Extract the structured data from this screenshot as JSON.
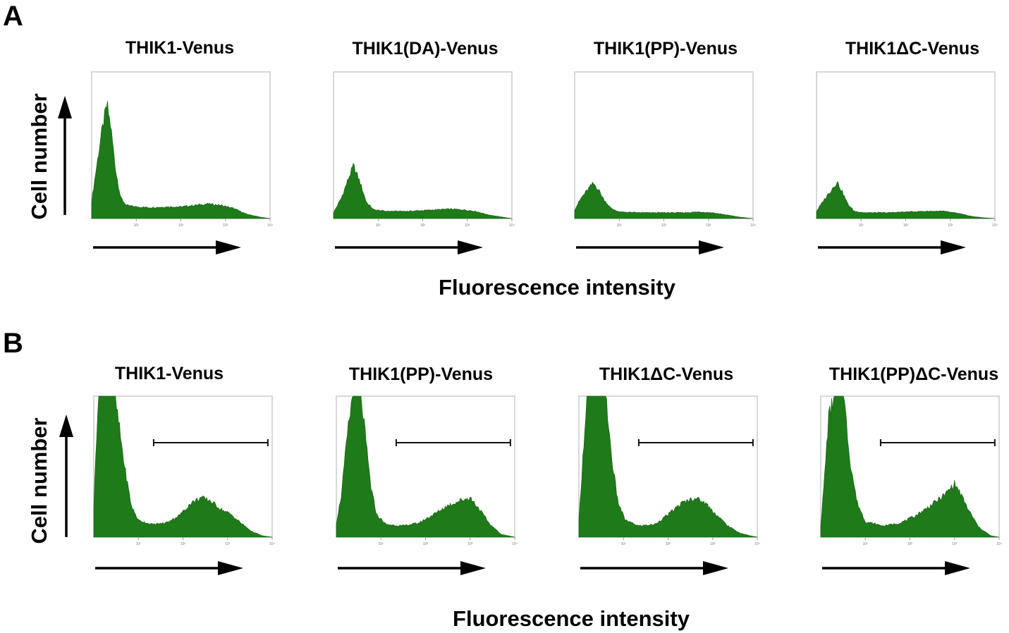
{
  "figure": {
    "panel_a_label": "A",
    "panel_b_label": "B",
    "y_axis_label": "Cell number",
    "x_axis_label": "Fluorescence intensity"
  },
  "colors": {
    "histogram_fill": "#1f7a1a",
    "frame": "#cfcfcf",
    "arrow": "#000000"
  },
  "chart_data": [
    {
      "panel": "A",
      "type": "area",
      "title": "THIK1-Venus",
      "xlabel": "Fluorescence intensity",
      "ylabel": "Cell number",
      "x_scale": "log",
      "xlim": [
        1,
        10000
      ],
      "ylim": [
        0,
        100
      ],
      "x_ticks": [
        "10¹",
        "10²",
        "10³",
        "10⁴"
      ],
      "curve": [
        [
          1,
          12
        ],
        [
          1.6,
          55
        ],
        [
          2.2,
          78
        ],
        [
          2.7,
          62
        ],
        [
          3.5,
          32
        ],
        [
          4.5,
          14
        ],
        [
          6,
          9
        ],
        [
          10,
          8
        ],
        [
          20,
          7.5
        ],
        [
          50,
          8
        ],
        [
          100,
          8
        ],
        [
          200,
          9
        ],
        [
          400,
          10
        ],
        [
          800,
          9
        ],
        [
          1500,
          7
        ],
        [
          3000,
          3
        ],
        [
          6000,
          1
        ],
        [
          10000,
          0
        ]
      ]
    },
    {
      "panel": "A",
      "type": "area",
      "title": "THIK1(DA)-Venus",
      "xlabel": "Fluorescence intensity",
      "ylabel": "Cell number",
      "x_scale": "log",
      "xlim": [
        1,
        10000
      ],
      "ylim": [
        0,
        100
      ],
      "x_ticks": [
        "10¹",
        "10²",
        "10³",
        "10⁴"
      ],
      "curve": [
        [
          1,
          4
        ],
        [
          1.5,
          14
        ],
        [
          2.2,
          28
        ],
        [
          2.8,
          36
        ],
        [
          3.8,
          26
        ],
        [
          5.5,
          11
        ],
        [
          8,
          6
        ],
        [
          15,
          5
        ],
        [
          50,
          5
        ],
        [
          100,
          5.5
        ],
        [
          200,
          6
        ],
        [
          400,
          6.5
        ],
        [
          800,
          6
        ],
        [
          1500,
          5
        ],
        [
          3000,
          2.5
        ],
        [
          6000,
          1
        ],
        [
          10000,
          0
        ]
      ]
    },
    {
      "panel": "A",
      "type": "area",
      "title": "THIK1(PP)-Venus",
      "xlabel": "Fluorescence intensity",
      "ylabel": "Cell number",
      "x_scale": "log",
      "xlim": [
        1,
        10000
      ],
      "ylim": [
        0,
        100
      ],
      "x_ticks": [
        "10¹",
        "10²",
        "10³",
        "10⁴"
      ],
      "curve": [
        [
          1,
          6
        ],
        [
          1.4,
          14
        ],
        [
          2,
          20
        ],
        [
          2.6,
          24
        ],
        [
          3.4,
          20
        ],
        [
          4.5,
          13
        ],
        [
          6.5,
          7
        ],
        [
          10,
          4.5
        ],
        [
          30,
          4
        ],
        [
          100,
          4
        ],
        [
          300,
          4
        ],
        [
          600,
          4.5
        ],
        [
          1200,
          4
        ],
        [
          2500,
          2.5
        ],
        [
          5000,
          1
        ],
        [
          10000,
          0
        ]
      ]
    },
    {
      "panel": "A",
      "type": "area",
      "title": "THIK1ΔC-Venus",
      "xlabel": "Fluorescence intensity",
      "ylabel": "Cell number",
      "x_scale": "log",
      "xlim": [
        1,
        10000
      ],
      "ylim": [
        0,
        100
      ],
      "x_ticks": [
        "10¹",
        "10²",
        "10³",
        "10⁴"
      ],
      "curve": [
        [
          1,
          5
        ],
        [
          1.5,
          13
        ],
        [
          2.2,
          20
        ],
        [
          2.9,
          25
        ],
        [
          3.8,
          18
        ],
        [
          5,
          10
        ],
        [
          7,
          5
        ],
        [
          12,
          4
        ],
        [
          40,
          4
        ],
        [
          100,
          4.5
        ],
        [
          300,
          5
        ],
        [
          700,
          5
        ],
        [
          1500,
          3.5
        ],
        [
          3000,
          1.5
        ],
        [
          6000,
          0.5
        ],
        [
          10000,
          0
        ]
      ]
    },
    {
      "panel": "B",
      "type": "area",
      "title": "THIK1-Venus",
      "xlabel": "Fluorescence intensity",
      "ylabel": "Cell number",
      "x_scale": "log",
      "xlim": [
        1,
        10000
      ],
      "ylim": [
        0,
        100
      ],
      "x_ticks": [
        "10¹",
        "10²",
        "10³",
        "10⁴"
      ],
      "gate": [
        22,
        8000
      ],
      "curve": [
        [
          1,
          22
        ],
        [
          1.25,
          100
        ],
        [
          3,
          100
        ],
        [
          5,
          48
        ],
        [
          7,
          22
        ],
        [
          10,
          12
        ],
        [
          20,
          9
        ],
        [
          40,
          10
        ],
        [
          80,
          15
        ],
        [
          150,
          24
        ],
        [
          250,
          28
        ],
        [
          400,
          26
        ],
        [
          700,
          20
        ],
        [
          1200,
          16
        ],
        [
          2000,
          10
        ],
        [
          3500,
          4
        ],
        [
          6000,
          1
        ],
        [
          10000,
          0
        ]
      ]
    },
    {
      "panel": "B",
      "type": "area",
      "title": "THIK1(PP)-Venus",
      "xlabel": "Fluorescence intensity",
      "ylabel": "Cell number",
      "x_scale": "log",
      "xlim": [
        1,
        10000
      ],
      "ylim": [
        0,
        100
      ],
      "x_ticks": [
        "10¹",
        "10²",
        "10³",
        "10⁴"
      ],
      "gate": [
        22,
        8000
      ],
      "curve": [
        [
          1,
          10
        ],
        [
          1.3,
          30
        ],
        [
          1.8,
          75
        ],
        [
          2.3,
          100
        ],
        [
          3.6,
          100
        ],
        [
          4.5,
          70
        ],
        [
          6,
          35
        ],
        [
          8,
          16
        ],
        [
          13,
          9
        ],
        [
          30,
          8
        ],
        [
          70,
          10
        ],
        [
          150,
          16
        ],
        [
          300,
          22
        ],
        [
          600,
          26
        ],
        [
          1000,
          28
        ],
        [
          1600,
          20
        ],
        [
          2800,
          9
        ],
        [
          5000,
          2
        ],
        [
          10000,
          0
        ]
      ]
    },
    {
      "panel": "B",
      "type": "area",
      "title": "THIK1ΔC-Venus",
      "xlabel": "Fluorescence intensity",
      "ylabel": "Cell number",
      "x_scale": "log",
      "xlim": [
        1,
        10000
      ],
      "ylim": [
        0,
        100
      ],
      "x_ticks": [
        "10¹",
        "10²",
        "10³",
        "10⁴"
      ],
      "gate": [
        22,
        8000
      ],
      "curve": [
        [
          1,
          12
        ],
        [
          1.25,
          60
        ],
        [
          1.5,
          100
        ],
        [
          4,
          100
        ],
        [
          5.5,
          55
        ],
        [
          7.5,
          25
        ],
        [
          11,
          12
        ],
        [
          22,
          8
        ],
        [
          50,
          9
        ],
        [
          100,
          16
        ],
        [
          200,
          24
        ],
        [
          400,
          28
        ],
        [
          700,
          24
        ],
        [
          1200,
          16
        ],
        [
          2200,
          8
        ],
        [
          4000,
          3
        ],
        [
          7000,
          1
        ],
        [
          10000,
          0
        ]
      ]
    },
    {
      "panel": "B",
      "type": "area",
      "title": "THIK1(PP)ΔC-Venus",
      "xlabel": "Fluorescence intensity",
      "ylabel": "Cell number",
      "x_scale": "log",
      "xlim": [
        1,
        10000
      ],
      "ylim": [
        0,
        100
      ],
      "x_ticks": [
        "10¹",
        "10²",
        "10³",
        "10⁴"
      ],
      "gate": [
        22,
        8000
      ],
      "curve": [
        [
          1,
          8
        ],
        [
          1.2,
          40
        ],
        [
          1.5,
          85
        ],
        [
          2,
          100
        ],
        [
          3.3,
          100
        ],
        [
          4.5,
          55
        ],
        [
          6.5,
          25
        ],
        [
          10,
          11
        ],
        [
          25,
          8
        ],
        [
          60,
          10
        ],
        [
          130,
          15
        ],
        [
          280,
          22
        ],
        [
          600,
          30
        ],
        [
          1000,
          38
        ],
        [
          1300,
          32
        ],
        [
          2000,
          20
        ],
        [
          3500,
          7
        ],
        [
          6500,
          1
        ],
        [
          10000,
          0
        ]
      ]
    }
  ]
}
